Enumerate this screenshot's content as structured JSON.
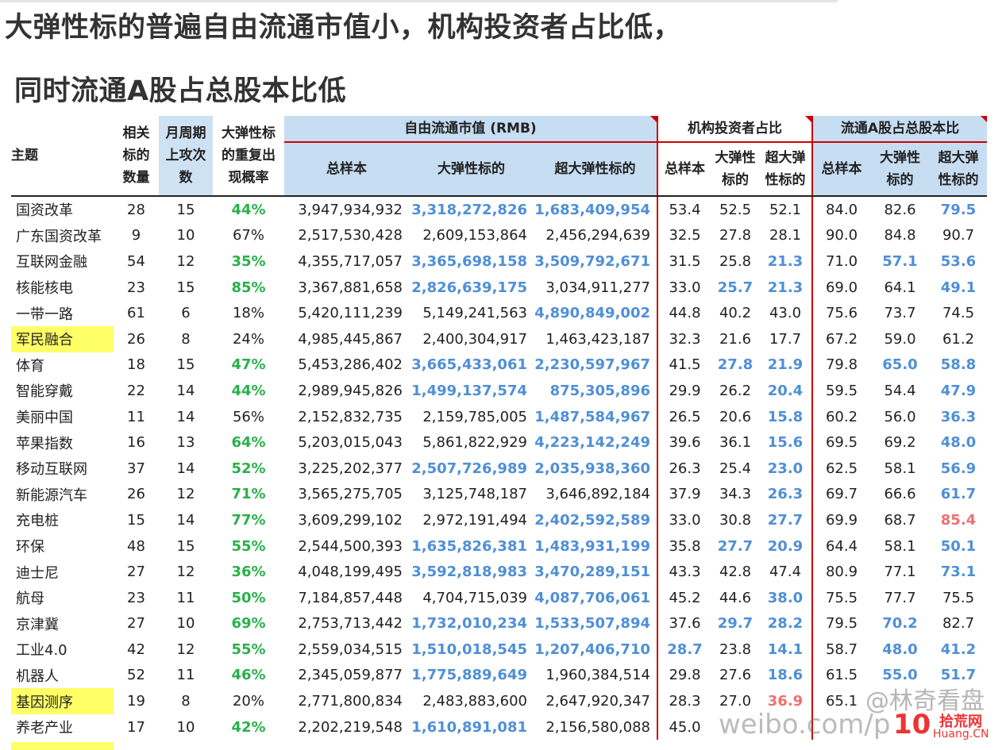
{
  "page": {
    "title_line1": "大弹性标的普遍自由流通市值小，机构投资者占比低，",
    "title_line2": "同时流通A股占总股本比低"
  },
  "table": {
    "headers": {
      "theme": "主题",
      "related_count": "相关\n标的\n数量",
      "monthly_rise": "月周期\n上攻次\n数",
      "repeat_prob": "大弹性标\n的重复出\n现概率",
      "group_market_cap": "自由流通市值 (RMB)",
      "group_institution": "机构投资者占比",
      "group_float": "流通A股占总股本比",
      "cap_sub": [
        "总样本",
        "大弹性标的",
        "超大弹性标的"
      ],
      "inst_sub": [
        "总样本",
        "大弹性\n标的",
        "超大弹\n性标的"
      ],
      "float_sub": [
        "总样本",
        "大弹性\n标的",
        "超大弹\n性标的"
      ]
    },
    "rows": [
      {
        "name": "国资改革",
        "hl": false,
        "c": "28",
        "m": "15",
        "p": "44%",
        "pc": "g",
        "s": "3,947,934,932",
        "d": "3,318,272,826",
        "dc": "b",
        "e": "1,683,409,954",
        "ec": "b",
        "i1": "53.4",
        "i2": "52.5",
        "i2c": "",
        "i3": "52.1",
        "i3c": "",
        "f1": "84.0",
        "f2": "82.6",
        "f2c": "",
        "f3": "79.5",
        "f3c": "b"
      },
      {
        "name": "广东国资改革",
        "hl": false,
        "c": "9",
        "m": "10",
        "p": "67%",
        "pc": "",
        "s": "2,517,530,428",
        "d": "2,609,153,864",
        "dc": "",
        "e": "2,456,294,639",
        "ec": "",
        "i1": "32.5",
        "i2": "27.8",
        "i2c": "",
        "i3": "28.1",
        "i3c": "",
        "f1": "90.0",
        "f2": "84.8",
        "f2c": "",
        "f3": "90.7",
        "f3c": ""
      },
      {
        "name": "互联网金融",
        "hl": false,
        "c": "54",
        "m": "12",
        "p": "35%",
        "pc": "g",
        "s": "4,355,717,057",
        "d": "3,365,698,158",
        "dc": "b",
        "e": "3,509,792,671",
        "ec": "b",
        "i1": "31.5",
        "i2": "25.8",
        "i2c": "",
        "i3": "21.3",
        "i3c": "b",
        "f1": "71.0",
        "f2": "57.1",
        "f2c": "b",
        "f3": "53.6",
        "f3c": "b"
      },
      {
        "name": "核能核电",
        "hl": false,
        "c": "23",
        "m": "15",
        "p": "85%",
        "pc": "g",
        "s": "3,367,881,658",
        "d": "2,826,639,175",
        "dc": "b",
        "e": "3,034,911,277",
        "ec": "",
        "i1": "33.0",
        "i2": "25.7",
        "i2c": "b",
        "i3": "21.3",
        "i3c": "b",
        "f1": "69.0",
        "f2": "64.1",
        "f2c": "",
        "f3": "49.1",
        "f3c": "b"
      },
      {
        "name": "一带一路",
        "hl": false,
        "c": "61",
        "m": "6",
        "p": "18%",
        "pc": "",
        "s": "5,420,111,239",
        "d": "5,149,241,563",
        "dc": "",
        "e": "4,890,849,002",
        "ec": "b",
        "i1": "44.8",
        "i2": "40.2",
        "i2c": "",
        "i3": "43.0",
        "i3c": "",
        "f1": "75.6",
        "f2": "73.7",
        "f2c": "",
        "f3": "74.5",
        "f3c": ""
      },
      {
        "name": "军民融合",
        "hl": true,
        "c": "26",
        "m": "8",
        "p": "24%",
        "pc": "",
        "s": "4,985,445,867",
        "d": "2,400,304,917",
        "dc": "",
        "e": "1,463,423,187",
        "ec": "",
        "i1": "32.3",
        "i2": "21.6",
        "i2c": "",
        "i3": "17.7",
        "i3c": "",
        "f1": "67.2",
        "f2": "59.0",
        "f2c": "",
        "f3": "61.2",
        "f3c": ""
      },
      {
        "name": "体育",
        "hl": false,
        "c": "18",
        "m": "15",
        "p": "47%",
        "pc": "g",
        "s": "5,453,286,402",
        "d": "3,665,433,061",
        "dc": "b",
        "e": "2,230,597,967",
        "ec": "b",
        "i1": "41.5",
        "i2": "27.8",
        "i2c": "b",
        "i3": "21.9",
        "i3c": "b",
        "f1": "79.8",
        "f2": "65.0",
        "f2c": "b",
        "f3": "58.8",
        "f3c": "b"
      },
      {
        "name": "智能穿戴",
        "hl": false,
        "c": "22",
        "m": "14",
        "p": "44%",
        "pc": "g",
        "s": "2,989,945,826",
        "d": "1,499,137,574",
        "dc": "b",
        "e": "875,305,896",
        "ec": "b",
        "i1": "29.9",
        "i2": "26.2",
        "i2c": "",
        "i3": "20.4",
        "i3c": "b",
        "f1": "59.5",
        "f2": "54.4",
        "f2c": "",
        "f3": "47.9",
        "f3c": "b"
      },
      {
        "name": "美丽中国",
        "hl": false,
        "c": "11",
        "m": "14",
        "p": "56%",
        "pc": "",
        "s": "2,152,832,735",
        "d": "2,159,785,005",
        "dc": "",
        "e": "1,487,584,967",
        "ec": "b",
        "i1": "26.5",
        "i2": "20.6",
        "i2c": "",
        "i3": "15.8",
        "i3c": "b",
        "f1": "60.2",
        "f2": "56.0",
        "f2c": "",
        "f3": "36.3",
        "f3c": "b"
      },
      {
        "name": "苹果指数",
        "hl": false,
        "c": "16",
        "m": "13",
        "p": "64%",
        "pc": "g",
        "s": "5,203,015,043",
        "d": "5,861,822,929",
        "dc": "",
        "e": "4,223,142,249",
        "ec": "b",
        "i1": "39.6",
        "i2": "36.1",
        "i2c": "",
        "i3": "15.6",
        "i3c": "b",
        "f1": "69.5",
        "f2": "69.2",
        "f2c": "",
        "f3": "48.0",
        "f3c": "b"
      },
      {
        "name": "移动互联网",
        "hl": false,
        "c": "37",
        "m": "14",
        "p": "52%",
        "pc": "g",
        "s": "3,225,202,377",
        "d": "2,507,726,989",
        "dc": "b",
        "e": "2,035,938,360",
        "ec": "b",
        "i1": "26.3",
        "i2": "25.4",
        "i2c": "",
        "i3": "23.0",
        "i3c": "b",
        "f1": "62.5",
        "f2": "58.1",
        "f2c": "",
        "f3": "56.9",
        "f3c": "b"
      },
      {
        "name": "新能源汽车",
        "hl": false,
        "c": "26",
        "m": "12",
        "p": "71%",
        "pc": "g",
        "s": "3,565,275,705",
        "d": "3,125,748,187",
        "dc": "",
        "e": "3,646,892,184",
        "ec": "",
        "i1": "37.9",
        "i2": "34.3",
        "i2c": "",
        "i3": "26.3",
        "i3c": "b",
        "f1": "69.7",
        "f2": "66.6",
        "f2c": "",
        "f3": "61.7",
        "f3c": "b"
      },
      {
        "name": "充电桩",
        "hl": false,
        "c": "15",
        "m": "14",
        "p": "77%",
        "pc": "g",
        "s": "3,609,299,102",
        "d": "2,972,191,494",
        "dc": "",
        "e": "2,402,592,589",
        "ec": "b",
        "i1": "33.0",
        "i2": "30.8",
        "i2c": "",
        "i3": "27.7",
        "i3c": "b",
        "f1": "69.9",
        "f2": "68.7",
        "f2c": "",
        "f3": "85.4",
        "f3c": "r"
      },
      {
        "name": "环保",
        "hl": false,
        "c": "48",
        "m": "15",
        "p": "55%",
        "pc": "g",
        "s": "2,544,500,393",
        "d": "1,635,826,381",
        "dc": "b",
        "e": "1,483,931,199",
        "ec": "b",
        "i1": "35.8",
        "i2": "27.7",
        "i2c": "b",
        "i3": "20.9",
        "i3c": "b",
        "f1": "64.4",
        "f2": "58.1",
        "f2c": "",
        "f3": "50.1",
        "f3c": "b"
      },
      {
        "name": "迪士尼",
        "hl": false,
        "c": "27",
        "m": "12",
        "p": "36%",
        "pc": "g",
        "s": "4,048,199,495",
        "d": "3,592,818,983",
        "dc": "b",
        "e": "3,470,289,151",
        "ec": "b",
        "i1": "43.3",
        "i2": "42.8",
        "i2c": "",
        "i3": "47.4",
        "i3c": "",
        "f1": "80.9",
        "f2": "77.1",
        "f2c": "",
        "f3": "73.1",
        "f3c": "b"
      },
      {
        "name": "航母",
        "hl": false,
        "c": "23",
        "m": "11",
        "p": "50%",
        "pc": "g",
        "s": "7,184,857,448",
        "d": "4,704,715,039",
        "dc": "",
        "e": "4,087,706,061",
        "ec": "b",
        "i1": "45.2",
        "i2": "44.6",
        "i2c": "",
        "i3": "38.0",
        "i3c": "b",
        "f1": "75.5",
        "f2": "77.7",
        "f2c": "",
        "f3": "75.5",
        "f3c": ""
      },
      {
        "name": "京津冀",
        "hl": false,
        "c": "27",
        "m": "10",
        "p": "69%",
        "pc": "g",
        "s": "2,753,713,442",
        "d": "1,732,010,234",
        "dc": "b",
        "e": "1,533,507,894",
        "ec": "b",
        "i1": "37.6",
        "i2": "29.7",
        "i2c": "b",
        "i3": "28.2",
        "i3c": "b",
        "f1": "79.5",
        "f2": "70.2",
        "f2c": "b",
        "f3": "82.7",
        "f3c": ""
      },
      {
        "name": "工业4.0",
        "hl": false,
        "c": "42",
        "m": "12",
        "p": "55%",
        "pc": "g",
        "s": "2,559,034,515",
        "d": "1,510,018,545",
        "dc": "b",
        "e": "1,207,406,710",
        "ec": "b",
        "i1": "28.7",
        "i1c": "b",
        "i2": "23.8",
        "i2c": "",
        "i3": "14.1",
        "i3c": "b",
        "f1": "58.7",
        "f2": "48.0",
        "f2c": "b",
        "f3": "41.2",
        "f3c": "b"
      },
      {
        "name": "机器人",
        "hl": false,
        "c": "52",
        "m": "11",
        "p": "46%",
        "pc": "g",
        "s": "2,345,059,877",
        "d": "1,775,889,649",
        "dc": "b",
        "e": "1,960,384,514",
        "ec": "",
        "i1": "29.8",
        "i2": "27.6",
        "i2c": "",
        "i3": "18.6",
        "i3c": "b",
        "f1": "61.5",
        "f2": "55.0",
        "f2c": "b",
        "f3": "51.7",
        "f3c": "b"
      },
      {
        "name": "基因测序",
        "hl": true,
        "c": "19",
        "m": "8",
        "p": "20%",
        "pc": "",
        "s": "2,771,800,834",
        "d": "2,483,883,600",
        "dc": "",
        "e": "2,647,920,347",
        "ec": "",
        "i1": "28.3",
        "i2": "27.0",
        "i2c": "",
        "i3": "36.9",
        "i3c": "r",
        "f1": "65.1",
        "f2": "",
        "f2c": "",
        "f3": "",
        "f3c": ""
      },
      {
        "name": "养老产业",
        "hl": false,
        "c": "17",
        "m": "10",
        "p": "42%",
        "pc": "g",
        "s": "2,202,219,548",
        "d": "1,610,891,081",
        "dc": "b",
        "e": "2,156,580,088",
        "ec": "",
        "i1": "45.0",
        "i2": "",
        "i2c": "",
        "i3": "",
        "i3c": "",
        "f1": "",
        "f2": "",
        "f2c": "",
        "f3": "",
        "f3c": ""
      }
    ]
  },
  "watermark": {
    "line1": "@林奇看盘",
    "line2": "weibo.com/p",
    "logo_ten": "10",
    "logo_cn": "拾荒网",
    "logo_en": "Huang.CN"
  }
}
